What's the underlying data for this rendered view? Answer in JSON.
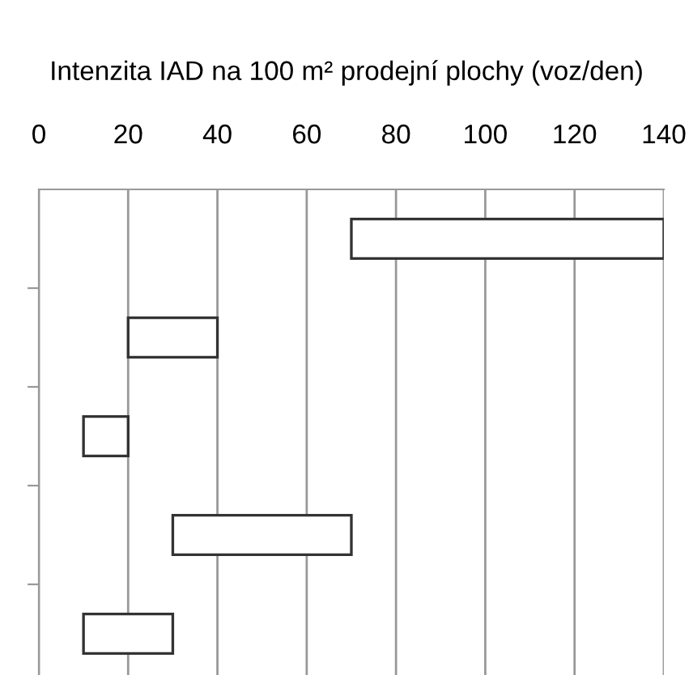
{
  "chart_data": {
    "type": "bar",
    "orientation": "horizontal",
    "title": "Intenzita IAD na 100 m² prodejní plochy (voz/den)",
    "categories": [
      null,
      null,
      null,
      null,
      null
    ],
    "base": [
      70,
      20,
      10,
      30,
      10
    ],
    "values": [
      70,
      20,
      10,
      40,
      20
    ],
    "color": "#ffffff",
    "xlim": [
      0,
      140
    ],
    "xticks": [
      0,
      20,
      40,
      60,
      80,
      100,
      120,
      140
    ],
    "grid": "x"
  }
}
